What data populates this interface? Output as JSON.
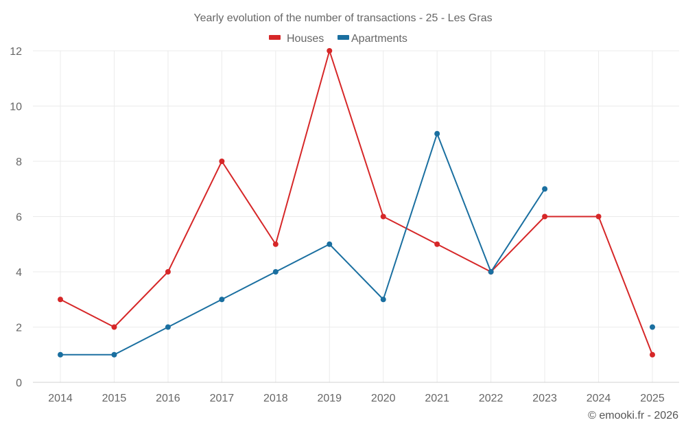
{
  "chart_data": {
    "type": "line",
    "title": "Yearly evolution of the number of transactions - 25 - Les Gras",
    "xlabel": "",
    "ylabel": "",
    "x": [
      "2014",
      "2015",
      "2016",
      "2017",
      "2018",
      "2019",
      "2020",
      "2021",
      "2022",
      "2023",
      "2024",
      "2025"
    ],
    "ylim": [
      0,
      12
    ],
    "yticks": [
      0,
      2,
      4,
      6,
      8,
      10,
      12
    ],
    "grid": true,
    "legend_position": "top-center",
    "series": [
      {
        "name": "Houses",
        "color": "#d62728",
        "values": [
          3,
          2,
          4,
          8,
          5,
          12,
          6,
          5,
          4,
          6,
          6,
          1
        ]
      },
      {
        "name": "Apartments",
        "color": "#1a6fa0",
        "values": [
          1,
          1,
          2,
          3,
          4,
          5,
          3,
          9,
          4,
          7,
          null,
          2
        ]
      }
    ],
    "credit": "© emooki.fr - 2026"
  }
}
